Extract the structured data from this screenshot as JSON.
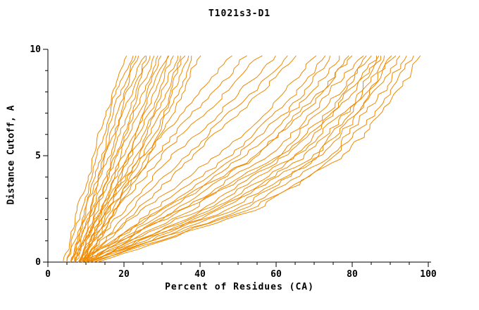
{
  "chart_data": {
    "type": "line",
    "title": "T1021s3-D1",
    "xlabel": "Percent of Residues (CA)",
    "ylabel": "Distance Cutoff, A",
    "xlim": [
      0,
      100
    ],
    "ylim": [
      0,
      10
    ],
    "x_ticks": [
      0,
      20,
      40,
      60,
      80,
      100
    ],
    "x_minor_step": 5,
    "y_ticks": [
      0,
      5,
      10
    ],
    "y_minor_step": 1,
    "line_color": "#F08A00",
    "axis_color": "#000000",
    "y_anchors": [
      0,
      2.5,
      5,
      7.5,
      9.7
    ],
    "series": [
      [
        4,
        8,
        12,
        16,
        21
      ],
      [
        5,
        9,
        13,
        17,
        22
      ],
      [
        5,
        10,
        14,
        18,
        23
      ],
      [
        6,
        10,
        15,
        19,
        24
      ],
      [
        6,
        11,
        15,
        20,
        25
      ],
      [
        7,
        11,
        16,
        21,
        26
      ],
      [
        7,
        12,
        17,
        22,
        27
      ],
      [
        6,
        12,
        18,
        23,
        28
      ],
      [
        7,
        13,
        18,
        24,
        29
      ],
      [
        8,
        13,
        19,
        25,
        30
      ],
      [
        8,
        14,
        20,
        26,
        31
      ],
      [
        7,
        14,
        21,
        27,
        32
      ],
      [
        8,
        15,
        21,
        28,
        33
      ],
      [
        9,
        15,
        22,
        29,
        34
      ],
      [
        9,
        16,
        23,
        30,
        35
      ],
      [
        8,
        16,
        24,
        31,
        36
      ],
      [
        9,
        17,
        25,
        32,
        37
      ],
      [
        10,
        18,
        26,
        33,
        38
      ],
      [
        10,
        18,
        27,
        34,
        40
      ],
      [
        7,
        14,
        25,
        38,
        48
      ],
      [
        8,
        16,
        28,
        41,
        52
      ],
      [
        8,
        18,
        30,
        44,
        56
      ],
      [
        9,
        20,
        33,
        48,
        60
      ],
      [
        9,
        22,
        36,
        51,
        63
      ],
      [
        10,
        24,
        38,
        53,
        66
      ],
      [
        8,
        25,
        45,
        60,
        70
      ],
      [
        9,
        28,
        48,
        63,
        73
      ],
      [
        9,
        30,
        50,
        65,
        75
      ],
      [
        10,
        32,
        52,
        67,
        77
      ],
      [
        10,
        34,
        55,
        69,
        79
      ],
      [
        8,
        30,
        55,
        70,
        80
      ],
      [
        9,
        35,
        58,
        72,
        82
      ],
      [
        10,
        38,
        60,
        74,
        84
      ],
      [
        9,
        36,
        62,
        76,
        85
      ],
      [
        10,
        40,
        63,
        77,
        86
      ],
      [
        11,
        42,
        65,
        78,
        87
      ],
      [
        10,
        44,
        66,
        80,
        88
      ],
      [
        11,
        45,
        68,
        81,
        89
      ],
      [
        11,
        46,
        70,
        82,
        90
      ],
      [
        12,
        48,
        71,
        83,
        91
      ],
      [
        12,
        50,
        72,
        84,
        92
      ],
      [
        11,
        52,
        74,
        86,
        94
      ],
      [
        12,
        54,
        76,
        88,
        96
      ],
      [
        13,
        55,
        78,
        90,
        98
      ]
    ]
  }
}
